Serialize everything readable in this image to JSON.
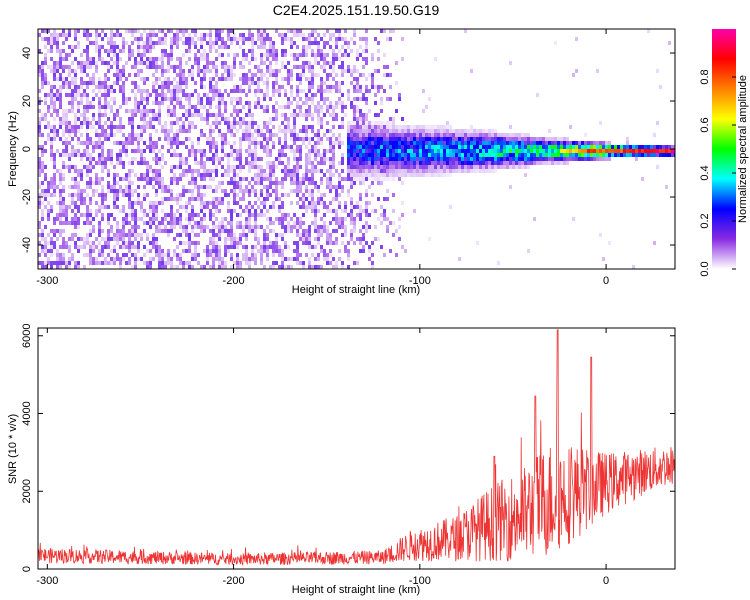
{
  "title": "C2E4.2025.151.19.50.G19",
  "chart_data": [
    {
      "type": "heatmap",
      "xlabel": "Height of straight line (km)",
      "ylabel": "Frequency (Hz)",
      "xlim": [
        -305,
        37
      ],
      "ylim": [
        -50,
        50
      ],
      "x_ticks": [
        -300,
        -200,
        -100,
        0
      ],
      "y_ticks": [
        -40,
        -20,
        0,
        20,
        40
      ],
      "colorbar": {
        "label": "Normalized spectral amplitude",
        "range": [
          0,
          1
        ],
        "ticks": [
          "0.0",
          "0.2",
          "0.4",
          "0.6",
          "0.8"
        ],
        "tick_values": [
          0,
          0.2,
          0.4,
          0.6,
          0.8
        ],
        "colors": [
          "#ffffff",
          "#8a2be2",
          "#0000ff",
          "#00ffff",
          "#00ff00",
          "#ffff00",
          "#ff8000",
          "#ff0000",
          "#ff00aa"
        ]
      },
      "noise_region_x": [
        -305,
        -105
      ],
      "signal_band": [
        {
          "x": -140,
          "half_width_hz": 9,
          "amplitude": 0.3
        },
        {
          "x": -100,
          "half_width_hz": 8,
          "amplitude": 0.35
        },
        {
          "x": -60,
          "half_width_hz": 6,
          "amplitude": 0.45
        },
        {
          "x": -30,
          "half_width_hz": 4,
          "amplitude": 0.55
        },
        {
          "x": -10,
          "half_width_hz": 3,
          "amplitude": 0.8
        },
        {
          "x": 10,
          "half_width_hz": 2,
          "amplitude": 0.85
        },
        {
          "x": 35,
          "half_width_hz": 1.5,
          "amplitude": 0.9
        }
      ]
    },
    {
      "type": "line",
      "xlabel": "Height of straight line (km)",
      "ylabel": "SNR (10 * v/v)",
      "xlim": [
        -305,
        37
      ],
      "ylim": [
        0,
        6200
      ],
      "x_ticks": [
        -300,
        -200,
        -100,
        0
      ],
      "y_ticks": [
        0,
        2000,
        4000,
        6000
      ],
      "color": "#ee3333",
      "series": [
        {
          "envelope": [
            {
              "x": -305,
              "mean": 350,
              "spread": 200
            },
            {
              "x": -200,
              "mean": 250,
              "spread": 150
            },
            {
              "x": -120,
              "mean": 300,
              "spread": 180
            },
            {
              "x": -105,
              "mean": 600,
              "spread": 400
            },
            {
              "x": -80,
              "mean": 800,
              "spread": 600
            },
            {
              "x": -60,
              "mean": 1200,
              "spread": 1000
            },
            {
              "x": -45,
              "mean": 1400,
              "spread": 1200
            },
            {
              "x": -30,
              "mean": 1800,
              "spread": 1500
            },
            {
              "x": -15,
              "mean": 2000,
              "spread": 1200
            },
            {
              "x": 0,
              "mean": 2200,
              "spread": 800
            },
            {
              "x": 20,
              "mean": 2500,
              "spread": 600
            },
            {
              "x": 37,
              "mean": 2700,
              "spread": 500
            }
          ],
          "peaks": [
            {
              "x": -26,
              "y": 6150
            },
            {
              "x": -8,
              "y": 5450
            },
            {
              "x": -38,
              "y": 4450
            },
            {
              "x": -60,
              "y": 2900
            }
          ]
        }
      ]
    }
  ]
}
